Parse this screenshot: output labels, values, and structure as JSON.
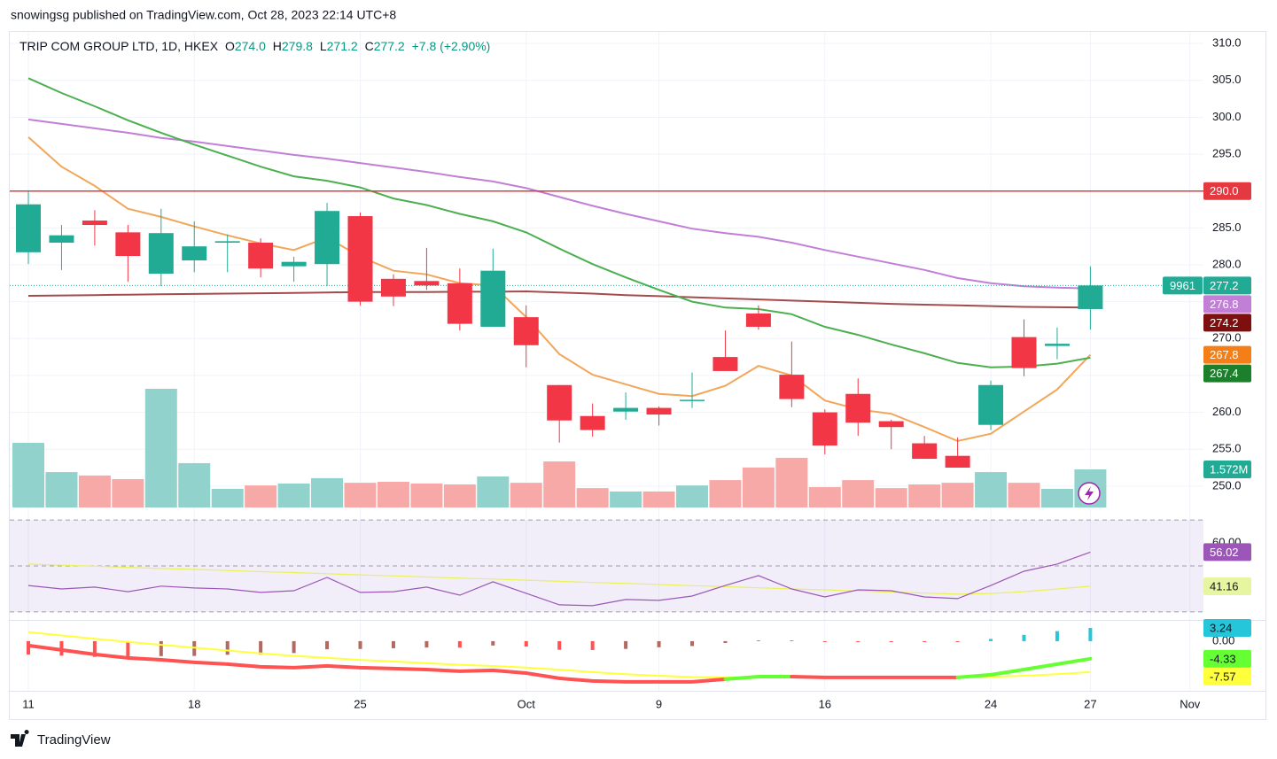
{
  "header": {
    "published": "snowingsg published on TradingView.com, Oct 28, 2023 22:14 UTC+8",
    "brand": "TradingView"
  },
  "chart_data": {
    "type": "candlestick",
    "legend": {
      "symbol": "TRIP COM GROUP LTD, 1D, HKEX",
      "fields": [
        {
          "key": "O",
          "label": "274.0"
        },
        {
          "key": "H",
          "label": "279.8"
        },
        {
          "key": "L",
          "label": "271.2"
        },
        {
          "key": "C",
          "label": "277.2"
        }
      ],
      "change": "+7.8 (+2.90%)"
    },
    "categories": [
      "2023-09-11",
      "2023-09-12",
      "2023-09-13",
      "2023-09-14",
      "2023-09-15",
      "2023-09-18",
      "2023-09-19",
      "2023-09-20",
      "2023-09-21",
      "2023-09-22",
      "2023-09-25",
      "2023-09-26",
      "2023-09-27",
      "2023-09-28",
      "2023-09-29",
      "2023-10-03",
      "2023-10-04",
      "2023-10-05",
      "2023-10-06",
      "2023-10-09",
      "2023-10-10",
      "2023-10-11",
      "2023-10-12",
      "2023-10-13",
      "2023-10-16",
      "2023-10-17",
      "2023-10-18",
      "2023-10-19",
      "2023-10-20",
      "2023-10-24",
      "2023-10-25",
      "2023-10-26",
      "2023-10-27"
    ],
    "open": [
      281.7,
      283.0,
      286.0,
      284.4,
      278.8,
      280.6,
      283.0,
      283.0,
      279.8,
      280.1,
      286.6,
      278.1,
      277.8,
      277.5,
      271.6,
      272.9,
      263.7,
      259.5,
      260.1,
      260.6,
      261.6,
      267.5,
      273.4,
      265.1,
      260.0,
      262.5,
      258.8,
      255.8,
      254.1,
      258.3,
      270.2,
      269.0,
      274.0
    ],
    "high": [
      290.1,
      285.4,
      287.4,
      285.4,
      287.6,
      285.9,
      284.1,
      283.6,
      281.1,
      288.4,
      287.1,
      278.7,
      282.3,
      279.5,
      282.2,
      274.5,
      263.7,
      261.2,
      262.7,
      260.8,
      265.4,
      271.1,
      274.5,
      269.6,
      260.4,
      264.6,
      259.0,
      256.8,
      256.6,
      264.3,
      272.6,
      271.5,
      279.8
    ],
    "low": [
      280.1,
      279.3,
      282.6,
      277.7,
      277.1,
      279.0,
      279.0,
      278.3,
      277.7,
      277.1,
      274.5,
      274.4,
      276.6,
      271.1,
      271.6,
      266.1,
      255.9,
      256.7,
      259.0,
      258.2,
      260.6,
      265.6,
      271.2,
      260.7,
      254.3,
      256.8,
      255.0,
      253.7,
      252.5,
      257.6,
      264.9,
      267.2,
      271.2
    ],
    "close": [
      288.2,
      284.0,
      285.4,
      281.2,
      284.3,
      282.5,
      283.2,
      279.5,
      280.4,
      287.3,
      275.0,
      275.7,
      277.2,
      272.0,
      279.2,
      269.1,
      258.9,
      257.6,
      260.6,
      259.7,
      261.7,
      265.6,
      271.6,
      261.8,
      255.5,
      258.6,
      258.0,
      253.7,
      252.5,
      263.7,
      266.0,
      269.3,
      277.2
    ],
    "up_color": "#22ab94",
    "down_color": "#f23645",
    "ylim": [
      247.1,
      311.1
    ],
    "yticks": [
      {
        "value": 250,
        "label": "250.0"
      },
      {
        "value": 255,
        "label": "255.0"
      },
      {
        "value": 260,
        "label": "260.0"
      },
      {
        "value": 265,
        "label": "265.0"
      },
      {
        "value": 270,
        "label": "270.0"
      },
      {
        "value": 275,
        "label": "275.0"
      },
      {
        "value": 280,
        "label": "280.0"
      },
      {
        "value": 285,
        "label": "285.0"
      },
      {
        "value": 290,
        "label": "290.0"
      },
      {
        "value": 295,
        "label": "295.0"
      },
      {
        "value": 300,
        "label": "300.0"
      },
      {
        "value": 305,
        "label": "305.0"
      },
      {
        "value": 310,
        "label": "310.0"
      }
    ],
    "xticks": [
      {
        "value": "2023-09-11",
        "label": "11"
      },
      {
        "value": "2023-09-18",
        "label": "18"
      },
      {
        "value": "2023-09-25",
        "label": "25"
      },
      {
        "value": "2023-10-03",
        "label": "Oct"
      },
      {
        "value": "2023-10-09",
        "label": "9"
      },
      {
        "value": "2023-10-16",
        "label": "16"
      },
      {
        "value": "2023-10-24",
        "label": "24"
      },
      {
        "value": "2023-10-27",
        "label": "27"
      },
      {
        "value": "2023-11-01",
        "label": "Nov"
      }
    ],
    "grid": true,
    "moving_averages": [
      {
        "color": "#c27fd6",
        "label_color": "#c27fd6",
        "values": [
          299.7,
          299.1,
          298.5,
          297.9,
          297.2,
          296.7,
          296.1,
          295.5,
          294.9,
          294.4,
          293.8,
          293.2,
          292.6,
          291.9,
          291.3,
          290.4,
          289.2,
          288.0,
          286.9,
          285.9,
          284.9,
          284.3,
          283.8,
          283.0,
          282.0,
          281.1,
          280.2,
          279.3,
          278.2,
          277.5,
          277.1,
          276.9,
          276.8
        ]
      },
      {
        "color": "#a34c4c",
        "label_color": "#7f0f0f",
        "values": [
          275.8,
          275.85,
          275.9,
          275.95,
          276.0,
          276.05,
          276.1,
          276.15,
          276.2,
          276.25,
          276.3,
          276.3,
          276.3,
          276.35,
          276.35,
          276.4,
          276.25,
          276.1,
          275.9,
          275.75,
          275.6,
          275.45,
          275.3,
          275.15,
          275.0,
          274.85,
          274.7,
          274.6,
          274.5,
          274.4,
          274.3,
          274.25,
          274.2
        ]
      },
      {
        "color": "#f2a65a",
        "label_color": "#f57f17",
        "values": [
          297.3,
          293.3,
          290.7,
          287.6,
          286.5,
          285.2,
          284.0,
          282.9,
          282.0,
          283.7,
          281.1,
          279.2,
          278.7,
          277.5,
          277.2,
          272.9,
          267.9,
          265.1,
          263.8,
          262.5,
          262.2,
          263.6,
          266.3,
          265.0,
          261.6,
          260.4,
          259.8,
          258.0,
          256.1,
          257.1,
          260.1,
          263.1,
          267.8
        ]
      },
      {
        "color": "#4caf50",
        "label_color": "#1b7f2b",
        "values": [
          305.3,
          303.3,
          301.5,
          299.6,
          297.9,
          296.3,
          294.8,
          293.3,
          292.0,
          291.4,
          290.5,
          289.0,
          288.1,
          286.9,
          285.9,
          284.4,
          282.2,
          280.1,
          278.3,
          276.6,
          275.0,
          274.2,
          274.0,
          273.3,
          271.6,
          270.5,
          269.2,
          268.0,
          266.7,
          266.1,
          266.2,
          266.6,
          267.4
        ]
      }
    ],
    "hline": {
      "value": 290,
      "label": "290.0",
      "color": "#e53941"
    },
    "price_line": {
      "tag": "9961",
      "color": "#22ab94"
    },
    "volume": {
      "values": [
        2.67,
        1.46,
        1.32,
        1.17,
        4.9,
        1.83,
        0.77,
        0.91,
        0.99,
        1.21,
        1.02,
        1.06,
        0.99,
        0.95,
        1.28,
        1.02,
        1.9,
        0.8,
        0.66,
        0.66,
        0.91,
        1.13,
        1.65,
        2.05,
        0.84,
        1.13,
        0.8,
        0.95,
        1.02,
        1.46,
        1.02,
        0.77,
        1.572
      ],
      "last_label": "1.572M",
      "up_color": "#92d2cc",
      "down_color": "#f7a9a7"
    },
    "rsi": {
      "ylim": [
        26.5,
        73.5
      ],
      "yticks": [
        {
          "value": 60,
          "label": "60.00"
        }
      ],
      "levels": [
        70,
        50,
        30
      ],
      "line": {
        "color": "#9c56b8",
        "values": [
          41.5,
          40.0,
          40.8,
          38.8,
          41.2,
          40.4,
          40.0,
          38.5,
          39.2,
          45.0,
          38.5,
          38.8,
          40.8,
          37.3,
          43.1,
          38.1,
          33.1,
          32.7,
          35.4,
          35.0,
          36.9,
          41.5,
          45.8,
          40.0,
          36.5,
          39.6,
          39.2,
          36.5,
          35.8,
          41.5,
          47.7,
          50.8,
          56.02
        ]
      },
      "ma": {
        "color": "#eaf05a",
        "label_color": "#e6f5a0",
        "values": [
          50.8,
          50.3,
          49.9,
          49.4,
          48.9,
          48.5,
          48.0,
          47.5,
          47.1,
          46.6,
          46.1,
          45.7,
          45.2,
          44.7,
          44.3,
          43.8,
          43.3,
          42.8,
          42.4,
          41.9,
          41.4,
          41.0,
          40.5,
          40.0,
          39.6,
          39.1,
          38.6,
          38.2,
          37.7,
          38.0,
          38.8,
          40.0,
          41.16
        ]
      }
    },
    "macd": {
      "ylim": [
        -11.1,
        5.2
      ],
      "yticks": [
        {
          "value": 0,
          "label": "0.00"
        }
      ],
      "macd": {
        "up_color": "#66ff33",
        "down_color": "#ff5252",
        "values": [
          -1.09,
          -2.17,
          -3.26,
          -4.13,
          -4.57,
          -5.22,
          -5.65,
          -6.3,
          -6.52,
          -6.09,
          -6.52,
          -6.74,
          -6.96,
          -7.39,
          -7.17,
          -7.83,
          -9.13,
          -9.78,
          -10.0,
          -10.0,
          -10.0,
          -9.35,
          -8.7,
          -8.7,
          -8.91,
          -8.91,
          -8.91,
          -8.91,
          -8.91,
          -8.26,
          -6.96,
          -5.65,
          -4.33
        ]
      },
      "signal": {
        "color": "#ffff3b",
        "values": [
          2.2,
          1.4,
          0.6,
          -0.2,
          -0.9,
          -1.6,
          -2.3,
          -3.0,
          -3.6,
          -4.1,
          -4.6,
          -5.0,
          -5.4,
          -5.8,
          -6.1,
          -6.5,
          -7.0,
          -7.6,
          -8.1,
          -8.5,
          -8.8,
          -8.9,
          -8.9,
          -8.9,
          -8.9,
          -8.9,
          -8.9,
          -8.9,
          -8.9,
          -8.8,
          -8.5,
          -8.1,
          -7.57
        ]
      },
      "histogram": {
        "colors": [
          "#ff5252",
          "#b06a62",
          "#26c6da",
          "#b2ebf2"
        ],
        "values": [
          -3.29,
          -3.57,
          -3.86,
          -3.93,
          -3.67,
          -3.62,
          -3.35,
          -3.3,
          -2.92,
          -1.99,
          -1.92,
          -1.74,
          -1.56,
          -1.59,
          -1.07,
          -1.33,
          -2.13,
          -2.18,
          -1.9,
          -1.5,
          -1.2,
          -0.45,
          0.2,
          0.2,
          -0.01,
          -0.01,
          -0.01,
          -0.01,
          -0.01,
          0.54,
          1.54,
          2.45,
          3.24
        ]
      }
    }
  }
}
